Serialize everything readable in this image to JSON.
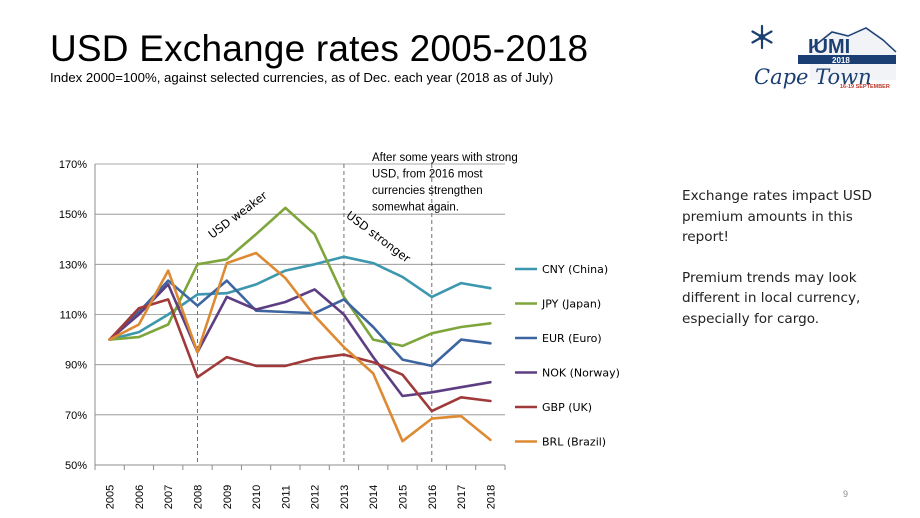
{
  "slide": {
    "title": "USD Exchange rates 2005-2018",
    "subtitle": "Index 2000=100%, against selected currencies, as of Dec. each year (2018 as of July)",
    "page_number": "9",
    "logo": {
      "brand": "IUMI",
      "year": "2018",
      "city": "Cape Town",
      "dates": "16-19 SEPTEMBER"
    }
  },
  "side_note": {
    "paragraph_1": "Exchange rates impact USD premium amounts in this report!",
    "paragraph_2": "Premium trends may look different in local currency, especially for cargo."
  },
  "chart_data": {
    "type": "line",
    "title": "USD Exchange rates 2005-2018",
    "xlabel": "",
    "ylabel": "",
    "x": [
      "2005",
      "2006",
      "2007",
      "2008",
      "2009",
      "2010",
      "2011",
      "2012",
      "2013",
      "2014",
      "2015",
      "2016",
      "2017",
      "2018"
    ],
    "ylim": [
      50,
      170
    ],
    "yticks": [
      50,
      70,
      90,
      110,
      130,
      150,
      170
    ],
    "ytick_suffix": "%",
    "grid": true,
    "legend_position": "right",
    "series": [
      {
        "name": "CNY (China)",
        "color": "#3C97AF",
        "values": [
          100,
          103,
          110,
          118,
          118.5,
          122,
          127.5,
          130,
          133,
          130.5,
          125,
          117,
          122.5,
          120.5
        ]
      },
      {
        "name": "JPY (Japan)",
        "color": "#7FA63D",
        "values": [
          100,
          101,
          106,
          130,
          132,
          142,
          152.5,
          142,
          117,
          100,
          97.5,
          102.5,
          105,
          106.5
        ]
      },
      {
        "name": "EUR (Euro)",
        "color": "#3D65A0",
        "values": [
          100,
          111,
          123.5,
          113.5,
          123.5,
          111.5,
          111,
          110.5,
          116,
          105,
          92,
          89.5,
          100,
          98.5
        ]
      },
      {
        "name": "NOK (Norway)",
        "color": "#5E3E82",
        "values": [
          100,
          110,
          122,
          95,
          117,
          112,
          115,
          120,
          110,
          93,
          77.5,
          79,
          81,
          83
        ]
      },
      {
        "name": "GBP (UK)",
        "color": "#A03A3A",
        "values": [
          100,
          112.5,
          116,
          85,
          93,
          89.5,
          89.5,
          92.5,
          94,
          91,
          86,
          71.5,
          77,
          75.5
        ]
      },
      {
        "name": "BRL (Brazil)",
        "color": "#DE8A33",
        "values": [
          100,
          106,
          127.5,
          95,
          130.5,
          134.5,
          124.5,
          109.5,
          97,
          86.5,
          59.5,
          68.5,
          69.5,
          60
        ]
      }
    ],
    "vlines": [
      {
        "x": "2008",
        "style": "dashed"
      },
      {
        "x": "2013",
        "style": "dashed"
      },
      {
        "x": "2016",
        "style": "dashed"
      }
    ],
    "annotations": [
      {
        "text": "USD weaker",
        "near": "2008-2010"
      },
      {
        "text": "USD stronger",
        "near": "2013-2015"
      },
      {
        "lines": [
          "After some years with strong",
          "USD, from 2016 most",
          "currencies strengthen",
          "somewhat again."
        ],
        "near": "2013-2018, top"
      }
    ]
  }
}
